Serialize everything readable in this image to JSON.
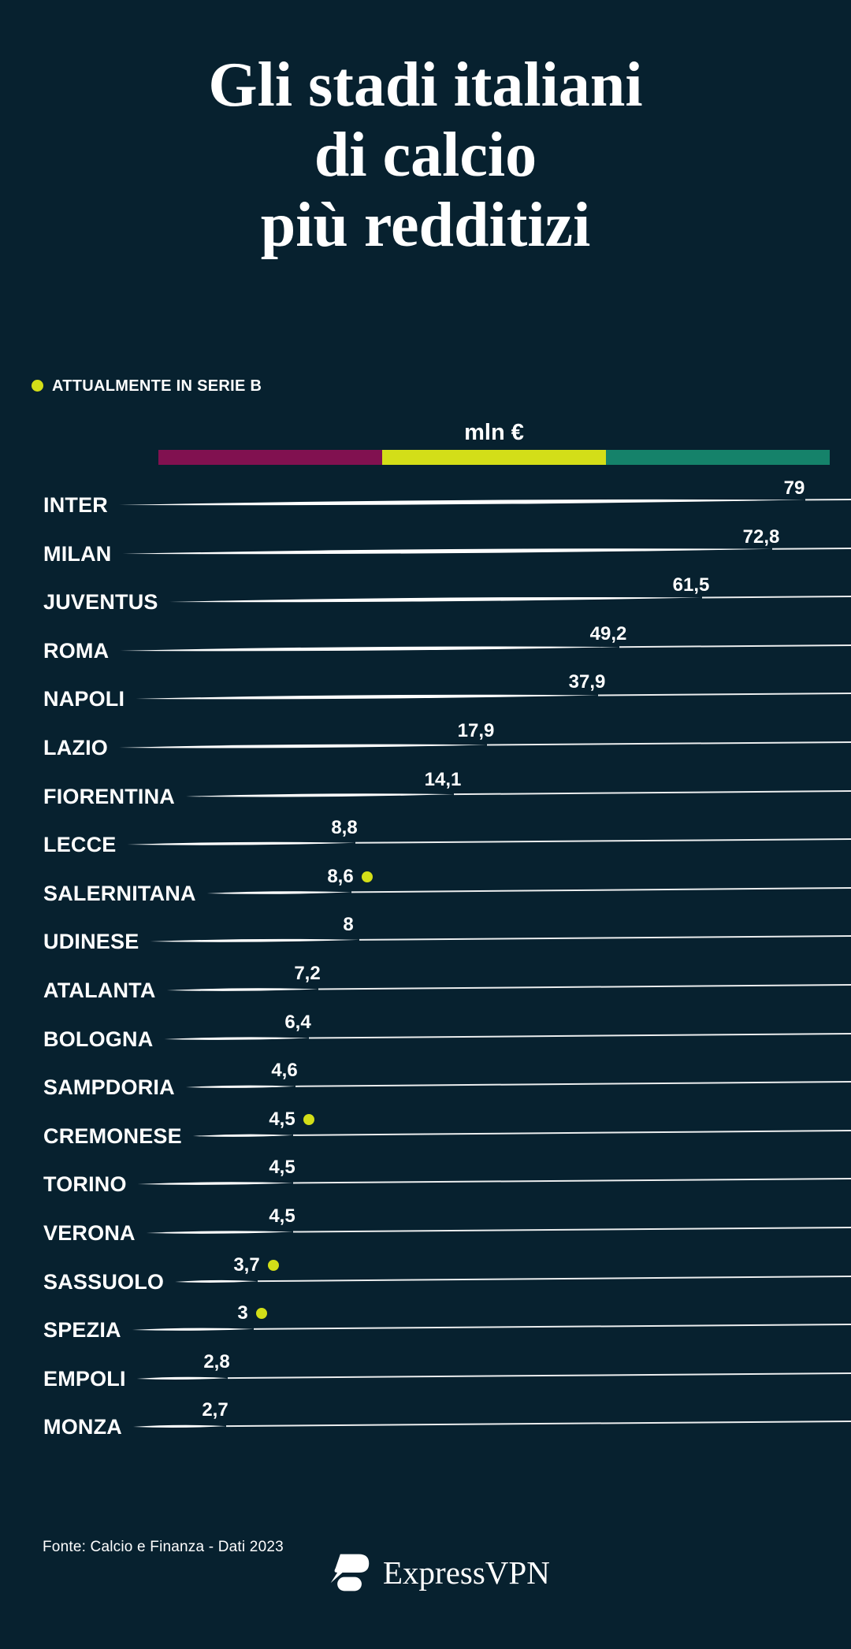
{
  "title": {
    "line1": "Gli stadi italiani",
    "line2": "di calcio",
    "line3": "più redditizi"
  },
  "legend": {
    "label": "ATTUALMENTE IN SERIE B",
    "dot_color": "#d3de18"
  },
  "footer": {
    "source": "Fonte: Calcio e Finanza - Dati 2023",
    "brand": "ExpressVPN"
  },
  "chart_data": {
    "type": "bar",
    "orientation": "horizontal",
    "title": "Gli stadi italiani di calcio più redditizi",
    "unit_label": "mln €",
    "legend_note": "ATTUALMENTE IN SERIE B",
    "categories": [
      "INTER",
      "MILAN",
      "JUVENTUS",
      "ROMA",
      "NAPOLI",
      "LAZIO",
      "FIORENTINA",
      "LECCE",
      "SALERNITANA",
      "UDINESE",
      "ATALANTA",
      "BOLOGNA",
      "SAMPDORIA",
      "CREMONESE",
      "TORINO",
      "VERONA",
      "SASSUOLO",
      "SPEZIA",
      "EMPOLI",
      "MONZA"
    ],
    "values": [
      79,
      72.8,
      61.5,
      49.2,
      37.9,
      17.9,
      14.1,
      8.8,
      8.6,
      8,
      7.2,
      6.4,
      4.6,
      4.5,
      4.5,
      4.5,
      3.7,
      3,
      2.8,
      2.7
    ],
    "value_labels": [
      "79",
      "72,8",
      "61,5",
      "49,2",
      "37,9",
      "17,9",
      "14,1",
      "8,8",
      "8,6",
      "8",
      "7,2",
      "6,4",
      "4,6",
      "4,5",
      "4,5",
      "4,5",
      "3,7",
      "3",
      "2,8",
      "2,7"
    ],
    "serie_b": [
      false,
      false,
      false,
      false,
      false,
      false,
      false,
      false,
      true,
      false,
      false,
      false,
      false,
      true,
      false,
      false,
      true,
      true,
      false,
      false
    ],
    "segment_colors": [
      "#811150",
      "#d3de18",
      "#15826a"
    ],
    "line_color": "#ffffff",
    "serie_b_dot_color": "#d3de18",
    "background_color": "#07212f"
  }
}
